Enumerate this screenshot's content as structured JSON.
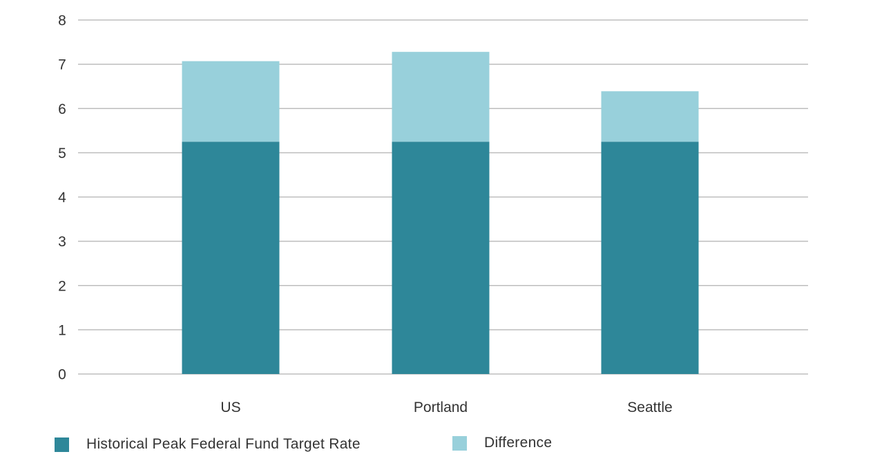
{
  "colors": {
    "primary": "#2e8799",
    "secondary": "#98d0db",
    "grid": "#bdbdbd",
    "text": "#333333"
  },
  "legend": {
    "items": [
      {
        "label": "Historical Peak Federal Fund Target Rate",
        "color": "#2e8799"
      },
      {
        "label": "Difference",
        "color": "#98d0db"
      }
    ]
  },
  "chart_data": {
    "type": "bar",
    "stacked": true,
    "categories": [
      "US",
      "Portland",
      "Seattle"
    ],
    "series": [
      {
        "name": "Historical Peak Federal Fund Target Rate",
        "values": [
          5.25,
          5.25,
          5.25
        ],
        "color": "#2e8799"
      },
      {
        "name": "Difference",
        "values": [
          1.82,
          2.03,
          1.14
        ],
        "color": "#98d0db"
      }
    ],
    "y_ticks": [
      0,
      1,
      2,
      3,
      4,
      5,
      6,
      7,
      8
    ],
    "ylim": [
      0,
      8
    ],
    "grid": true,
    "legend_position": "bottom-left",
    "title": "",
    "xlabel": "",
    "ylabel": ""
  }
}
